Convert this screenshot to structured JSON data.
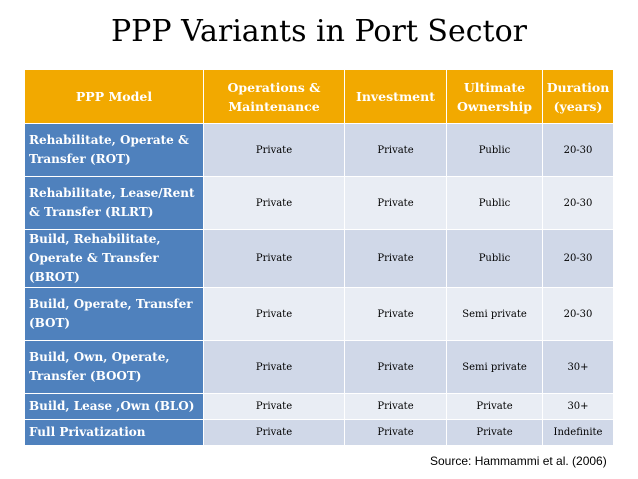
{
  "title": "PPP Variants in Port Sector",
  "headers": [
    "PPP Model",
    "Operations & Maintenance",
    "Investment",
    "Ultimate Ownership",
    "Duration (years)"
  ],
  "rows": [
    {
      "model": "Rehabilitate, Operate & Transfer (ROT)",
      "operations": "Private",
      "investment": "Private",
      "ownership": "Public",
      "duration": "20-30"
    },
    {
      "model": "Rehabilitate, Lease/Rent & Transfer (RLRT)",
      "operations": "Private",
      "investment": "Private",
      "ownership": "Public",
      "duration": "20-30"
    },
    {
      "model": "Build, Rehabilitate, Operate & Transfer (BROT)",
      "operations": "Private",
      "investment": "Private",
      "ownership": "Public",
      "duration": "20-30"
    },
    {
      "model": "Build, Operate, Transfer (BOT)",
      "operations": "Private",
      "investment": "Private",
      "ownership": "Semi private",
      "duration": "20-30"
    },
    {
      "model": "Build, Own, Operate, Transfer (BOOT)",
      "operations": "Private",
      "investment": "Private",
      "ownership": "Semi private",
      "duration": "30+"
    },
    {
      "model": "Build, Lease ,Own (BLO)",
      "operations": "Private",
      "investment": "Private",
      "ownership": "Private",
      "duration": "30+"
    },
    {
      "model": "Full Privatization",
      "operations": "Private",
      "investment": "Private",
      "ownership": "Private",
      "duration": "Indefinite"
    }
  ],
  "source": "Source: Hammammi et al. (2006)",
  "colors": {
    "header": "#f2a900",
    "model_column": "#4f81bd",
    "row_odd": "#d0d8e8",
    "row_even": "#e9edf4"
  }
}
